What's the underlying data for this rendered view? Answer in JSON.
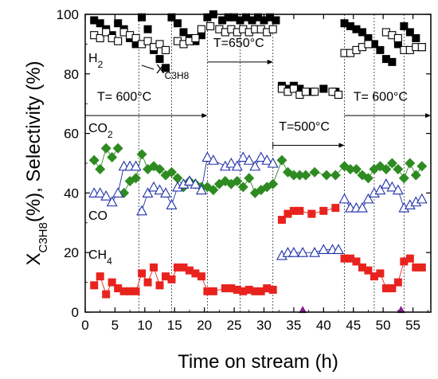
{
  "chart_data": {
    "type": "scatter",
    "xlabel": "Time on stream (h)",
    "ylabel_main": "X",
    "ylabel_sub": "C3H8",
    "ylabel_rest": "(%), Selectivity (%)",
    "xlim": [
      0,
      58
    ],
    "ylim": [
      0,
      100
    ],
    "xticks": [
      0,
      5,
      10,
      15,
      20,
      25,
      30,
      35,
      40,
      45,
      50,
      55
    ],
    "yticks": [
      0,
      20,
      40,
      60,
      80,
      100
    ],
    "cycle_lines": [
      9,
      14.5,
      20.5,
      26,
      31.5,
      43.5,
      48.5,
      53.5
    ],
    "series": [
      {
        "name": "X",
        "name_sub": "C3H8",
        "marker": "square-filled",
        "color": "#000000",
        "points": [
          [
            1.5,
            98
          ],
          [
            2.5,
            97
          ],
          [
            3.5,
            95
          ],
          [
            4.5,
            93
          ],
          [
            5.5,
            97
          ],
          [
            6.5,
            95
          ],
          [
            7.5,
            92
          ],
          [
            8.5,
            90
          ],
          [
            9.5,
            99
          ],
          [
            10.5,
            95
          ],
          [
            11.5,
            88
          ],
          [
            12.5,
            85
          ],
          [
            13.5,
            82
          ],
          [
            14.5,
            99
          ],
          [
            15.5,
            97
          ],
          [
            16.5,
            94
          ],
          [
            17.5,
            92
          ],
          [
            18.5,
            91
          ],
          [
            19.5,
            93
          ],
          [
            20.5,
            99
          ],
          [
            21.5,
            100
          ],
          [
            23,
            98
          ],
          [
            24,
            99
          ],
          [
            25,
            99
          ],
          [
            26,
            98
          ],
          [
            27,
            99
          ],
          [
            28,
            98
          ],
          [
            29,
            99
          ],
          [
            30,
            98
          ],
          [
            31,
            99
          ],
          [
            32,
            98
          ],
          [
            33,
            76
          ],
          [
            34,
            75
          ],
          [
            35,
            76
          ],
          [
            36,
            75
          ],
          [
            38,
            74
          ],
          [
            40,
            75
          ],
          [
            42,
            74
          ],
          [
            43.5,
            97
          ],
          [
            44.5,
            96
          ],
          [
            45.5,
            95
          ],
          [
            46.5,
            94
          ],
          [
            47.5,
            92
          ],
          [
            48.5,
            90
          ],
          [
            49.5,
            88
          ],
          [
            50.5,
            85
          ],
          [
            51.5,
            84
          ],
          [
            52.5,
            90
          ],
          [
            53.5,
            96
          ],
          [
            54.5,
            94
          ],
          [
            55.5,
            92
          ],
          [
            56.5,
            89
          ]
        ]
      },
      {
        "name": "H",
        "name_sub": "2",
        "marker": "square-open",
        "color": "#000000",
        "points": [
          [
            1.5,
            93
          ],
          [
            2.5,
            92
          ],
          [
            3.5,
            94
          ],
          [
            4.5,
            92
          ],
          [
            5.5,
            91
          ],
          [
            6.5,
            94
          ],
          [
            7.5,
            93
          ],
          [
            8.5,
            92
          ],
          [
            9.5,
            90
          ],
          [
            10.5,
            91
          ],
          [
            11.5,
            89
          ],
          [
            12.5,
            90
          ],
          [
            13.5,
            88
          ],
          [
            15.5,
            91
          ],
          [
            16.5,
            90
          ],
          [
            17.5,
            91
          ],
          [
            18.5,
            92
          ],
          [
            19.5,
            95
          ],
          [
            21,
            96
          ],
          [
            22.5,
            95
          ],
          [
            23.5,
            94
          ],
          [
            24.5,
            95
          ],
          [
            25.5,
            94
          ],
          [
            26.5,
            95
          ],
          [
            27.5,
            94
          ],
          [
            28.5,
            95
          ],
          [
            29.5,
            95
          ],
          [
            30.5,
            94
          ],
          [
            31.5,
            95
          ],
          [
            33,
            75
          ],
          [
            34,
            74
          ],
          [
            35,
            75
          ],
          [
            36,
            73
          ],
          [
            37,
            74
          ],
          [
            38.5,
            74
          ],
          [
            41.5,
            74
          ],
          [
            42.5,
            73
          ],
          [
            43.5,
            87
          ],
          [
            44.5,
            87
          ],
          [
            45.5,
            88
          ],
          [
            46.5,
            89
          ],
          [
            47.5,
            90
          ],
          [
            50.5,
            94
          ],
          [
            51.5,
            93
          ],
          [
            52.5,
            92
          ],
          [
            53.5,
            88
          ],
          [
            54.5,
            88
          ],
          [
            55.5,
            89
          ],
          [
            56.5,
            89
          ]
        ]
      },
      {
        "name": "CO",
        "name_sub": "2",
        "marker": "diamond-filled",
        "color": "#2e8b22",
        "connect": true,
        "points": [
          [
            1.5,
            51
          ],
          [
            2.5,
            48
          ],
          [
            3.5,
            55
          ],
          [
            4.5,
            52
          ],
          [
            5.5,
            55
          ],
          [
            6.5,
            40
          ],
          [
            7.5,
            44
          ],
          [
            8.5,
            45
          ],
          [
            9.5,
            53
          ],
          [
            10.5,
            48
          ],
          [
            11.5,
            49
          ],
          [
            12.5,
            48
          ],
          [
            13.5,
            46
          ],
          [
            14.5,
            47
          ],
          [
            15.5,
            45
          ],
          [
            16.5,
            42
          ],
          [
            17.5,
            44
          ],
          [
            18.5,
            43
          ],
          [
            19.5,
            42
          ],
          [
            20.5,
            42
          ],
          [
            21.5,
            41
          ],
          [
            22.5,
            43
          ],
          [
            23.5,
            44
          ],
          [
            24.5,
            43
          ],
          [
            25.5,
            44
          ],
          [
            26.5,
            42
          ],
          [
            27.5,
            45
          ],
          [
            28.5,
            40
          ],
          [
            29.5,
            41
          ],
          [
            30.5,
            42
          ],
          [
            31.5,
            43
          ],
          [
            33,
            51
          ],
          [
            34,
            47
          ],
          [
            35,
            46
          ],
          [
            36,
            46
          ],
          [
            37,
            46
          ],
          [
            38.5,
            47
          ],
          [
            40.5,
            46
          ],
          [
            42,
            46
          ],
          [
            43.5,
            49
          ],
          [
            44.5,
            48
          ],
          [
            45.5,
            48
          ],
          [
            46.5,
            46
          ],
          [
            47.5,
            45
          ],
          [
            48.5,
            48
          ],
          [
            49.5,
            49
          ],
          [
            50.5,
            48
          ],
          [
            51.5,
            50
          ],
          [
            52.5,
            48
          ],
          [
            53.5,
            45
          ],
          [
            54.5,
            50
          ],
          [
            55.5,
            46
          ],
          [
            56.5,
            49
          ]
        ]
      },
      {
        "name": "CO",
        "name_sub": "",
        "marker": "triangle-open",
        "color": "#1f2fa8",
        "connect": true,
        "points": [
          [
            1.5,
            40
          ],
          [
            2.5,
            40
          ],
          [
            3.5,
            39
          ],
          [
            4.5,
            37
          ],
          [
            5.5,
            40
          ],
          [
            6.5,
            49
          ],
          [
            7.5,
            49
          ],
          [
            8.5,
            49
          ],
          [
            9.5,
            34
          ],
          [
            10.5,
            40
          ],
          [
            11.5,
            42
          ],
          [
            12.5,
            41
          ],
          [
            13.5,
            40
          ],
          [
            14.5,
            36
          ],
          [
            15.5,
            42
          ],
          [
            16.5,
            43
          ],
          [
            17.5,
            44
          ],
          [
            18.5,
            43
          ],
          [
            19.5,
            41
          ],
          [
            20.5,
            52
          ],
          [
            21.5,
            51
          ],
          [
            23.5,
            49
          ],
          [
            24.5,
            50
          ],
          [
            25.5,
            49
          ],
          [
            26.5,
            52
          ],
          [
            27.5,
            51
          ],
          [
            28.5,
            49
          ],
          [
            29.5,
            52
          ],
          [
            30.5,
            51
          ],
          [
            31.5,
            50
          ],
          [
            33,
            19
          ],
          [
            34,
            20
          ],
          [
            35,
            20
          ],
          [
            36.5,
            20
          ],
          [
            38.5,
            20
          ],
          [
            40,
            21
          ],
          [
            41.5,
            21
          ],
          [
            42.5,
            21
          ],
          [
            43.5,
            38
          ],
          [
            44.5,
            35
          ],
          [
            45.5,
            35
          ],
          [
            46.5,
            35
          ],
          [
            47.5,
            38
          ],
          [
            48.5,
            40
          ],
          [
            49.5,
            41
          ],
          [
            50.5,
            43
          ],
          [
            51.5,
            42
          ],
          [
            52.5,
            41
          ],
          [
            53.5,
            35
          ],
          [
            54.5,
            36
          ],
          [
            55.5,
            37
          ],
          [
            56.5,
            38
          ]
        ]
      },
      {
        "name": "CH",
        "name_sub": "4",
        "marker": "square-filled",
        "color": "#e8231e",
        "connect": true,
        "points": [
          [
            1.5,
            9
          ],
          [
            2.5,
            12
          ],
          [
            3.5,
            6
          ],
          [
            4.5,
            10
          ],
          [
            5.5,
            8
          ],
          [
            6.5,
            7
          ],
          [
            7.5,
            7
          ],
          [
            8.5,
            7
          ],
          [
            9.5,
            13
          ],
          [
            10.5,
            10
          ],
          [
            11.5,
            15
          ],
          [
            12.5,
            9
          ],
          [
            13.5,
            12
          ],
          [
            14.5,
            11
          ],
          [
            15.5,
            15
          ],
          [
            16.5,
            15
          ],
          [
            17.5,
            14
          ],
          [
            18.5,
            13
          ],
          [
            19.5,
            12
          ],
          [
            20.5,
            7
          ],
          [
            21.5,
            7
          ],
          [
            23.5,
            8
          ],
          [
            24.5,
            8
          ],
          [
            25.5,
            7.5
          ],
          [
            26.5,
            7
          ],
          [
            27.5,
            7.5
          ],
          [
            28.5,
            7
          ],
          [
            29.5,
            7
          ],
          [
            30.5,
            8
          ],
          [
            31.5,
            7.5
          ],
          [
            33,
            31
          ],
          [
            34,
            33
          ],
          [
            35,
            34
          ],
          [
            36,
            34
          ],
          [
            38,
            33
          ],
          [
            40,
            34
          ],
          [
            42,
            35
          ],
          [
            43.5,
            18
          ],
          [
            44.5,
            18
          ],
          [
            45.5,
            17
          ],
          [
            46.5,
            15
          ],
          [
            47.5,
            14
          ],
          [
            48.5,
            12
          ],
          [
            49.5,
            13
          ],
          [
            50.5,
            8
          ],
          [
            51.5,
            8
          ],
          [
            52.5,
            10
          ],
          [
            53.5,
            17
          ],
          [
            54.5,
            18
          ],
          [
            55.5,
            15
          ],
          [
            56.5,
            15
          ]
        ]
      },
      {
        "name": "",
        "marker": "triangle-filled",
        "color": "#8b1a8b",
        "points": [
          [
            36.5,
            0.5
          ],
          [
            53,
            0.5
          ]
        ]
      }
    ],
    "annotations": {
      "temperature_labels": [
        {
          "text": "T= 600°C"
        },
        {
          "text": "T=650°C"
        },
        {
          "text": "T=500°C"
        },
        {
          "text": "T= 600°C"
        }
      ]
    }
  }
}
